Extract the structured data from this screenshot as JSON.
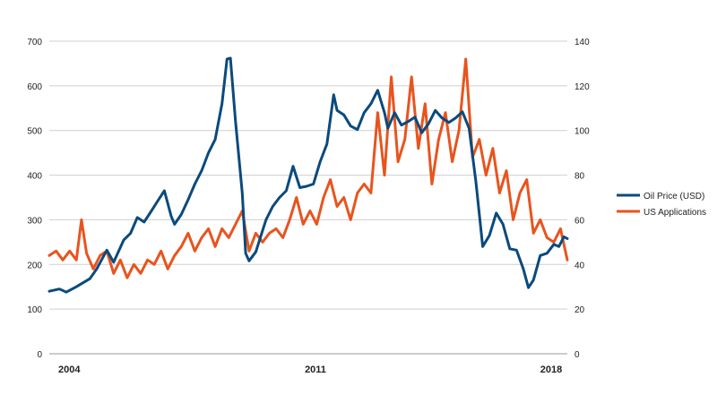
{
  "chart_data": {
    "type": "line",
    "title": "",
    "x_tick_labels": [
      "2004",
      "2011",
      "2018"
    ],
    "y_left_ticks": [
      "0",
      "100",
      "200",
      "300",
      "400",
      "500",
      "600",
      "700"
    ],
    "y_right_ticks": [
      "0",
      "20",
      "40",
      "60",
      "80",
      "100",
      "120",
      "140"
    ],
    "y_left_lim": [
      0,
      700
    ],
    "y_right_lim": [
      0,
      140
    ],
    "x_lim": [
      2003.6,
      2018.9
    ],
    "grid": "horizontal",
    "legend_position": "right",
    "series": [
      {
        "name": "Oil Price (USD)",
        "axis": "left",
        "color": "#0b4a7c",
        "points": [
          [
            2003.6,
            140
          ],
          [
            2003.9,
            145
          ],
          [
            2004.1,
            138
          ],
          [
            2004.4,
            150
          ],
          [
            2004.8,
            168
          ],
          [
            2005.0,
            190
          ],
          [
            2005.3,
            232
          ],
          [
            2005.5,
            205
          ],
          [
            2005.8,
            255
          ],
          [
            2006.0,
            270
          ],
          [
            2006.2,
            305
          ],
          [
            2006.4,
            295
          ],
          [
            2006.6,
            318
          ],
          [
            2006.8,
            342
          ],
          [
            2007.0,
            365
          ],
          [
            2007.2,
            308
          ],
          [
            2007.3,
            290
          ],
          [
            2007.5,
            312
          ],
          [
            2007.7,
            345
          ],
          [
            2007.9,
            380
          ],
          [
            2008.1,
            410
          ],
          [
            2008.3,
            450
          ],
          [
            2008.5,
            480
          ],
          [
            2008.7,
            560
          ],
          [
            2008.85,
            660
          ],
          [
            2008.95,
            662
          ],
          [
            2009.1,
            520
          ],
          [
            2009.3,
            360
          ],
          [
            2009.4,
            225
          ],
          [
            2009.5,
            208
          ],
          [
            2009.7,
            228
          ],
          [
            2010.0,
            300
          ],
          [
            2010.2,
            330
          ],
          [
            2010.4,
            350
          ],
          [
            2010.6,
            365
          ],
          [
            2010.8,
            420
          ],
          [
            2011.0,
            372
          ],
          [
            2011.2,
            375
          ],
          [
            2011.4,
            380
          ],
          [
            2011.6,
            430
          ],
          [
            2011.8,
            470
          ],
          [
            2012.0,
            580
          ],
          [
            2012.1,
            545
          ],
          [
            2012.3,
            535
          ],
          [
            2012.5,
            510
          ],
          [
            2012.7,
            502
          ],
          [
            2012.9,
            540
          ],
          [
            2013.1,
            560
          ],
          [
            2013.3,
            590
          ],
          [
            2013.5,
            540
          ],
          [
            2013.6,
            505
          ],
          [
            2013.8,
            540
          ],
          [
            2014.0,
            512
          ],
          [
            2014.2,
            520
          ],
          [
            2014.4,
            530
          ],
          [
            2014.6,
            495
          ],
          [
            2014.8,
            515
          ],
          [
            2015.0,
            545
          ],
          [
            2015.2,
            528
          ],
          [
            2015.4,
            518
          ],
          [
            2015.6,
            528
          ],
          [
            2015.8,
            542
          ],
          [
            2016.0,
            505
          ],
          [
            2016.2,
            385
          ],
          [
            2016.4,
            240
          ],
          [
            2016.6,
            265
          ],
          [
            2016.8,
            315
          ],
          [
            2017.0,
            290
          ],
          [
            2017.2,
            235
          ],
          [
            2017.4,
            232
          ],
          [
            2017.6,
            190
          ],
          [
            2017.75,
            148
          ],
          [
            2017.9,
            165
          ],
          [
            2018.1,
            220
          ],
          [
            2018.3,
            225
          ],
          [
            2018.5,
            245
          ],
          [
            2018.65,
            240
          ],
          [
            2018.8,
            262
          ],
          [
            2018.9,
            258
          ]
        ]
      },
      {
        "name": "US Applications",
        "axis": "right",
        "color": "#e8541e",
        "points": [
          [
            2003.6,
            44
          ],
          [
            2003.8,
            46
          ],
          [
            2004.0,
            42
          ],
          [
            2004.2,
            46
          ],
          [
            2004.4,
            42
          ],
          [
            2004.55,
            60
          ],
          [
            2004.7,
            45
          ],
          [
            2004.9,
            38
          ],
          [
            2005.1,
            44
          ],
          [
            2005.3,
            46
          ],
          [
            2005.5,
            36
          ],
          [
            2005.7,
            42
          ],
          [
            2005.9,
            34
          ],
          [
            2006.1,
            40
          ],
          [
            2006.3,
            36
          ],
          [
            2006.5,
            42
          ],
          [
            2006.7,
            40
          ],
          [
            2006.9,
            46
          ],
          [
            2007.1,
            38
          ],
          [
            2007.3,
            44
          ],
          [
            2007.5,
            48
          ],
          [
            2007.7,
            54
          ],
          [
            2007.9,
            46
          ],
          [
            2008.1,
            52
          ],
          [
            2008.3,
            56
          ],
          [
            2008.5,
            48
          ],
          [
            2008.7,
            56
          ],
          [
            2008.9,
            52
          ],
          [
            2009.1,
            58
          ],
          [
            2009.3,
            64
          ],
          [
            2009.5,
            46
          ],
          [
            2009.7,
            54
          ],
          [
            2009.9,
            50
          ],
          [
            2010.1,
            54
          ],
          [
            2010.3,
            56
          ],
          [
            2010.5,
            52
          ],
          [
            2010.7,
            60
          ],
          [
            2010.9,
            70
          ],
          [
            2011.1,
            58
          ],
          [
            2011.3,
            64
          ],
          [
            2011.5,
            58
          ],
          [
            2011.7,
            70
          ],
          [
            2011.9,
            78
          ],
          [
            2012.1,
            66
          ],
          [
            2012.3,
            70
          ],
          [
            2012.5,
            60
          ],
          [
            2012.7,
            72
          ],
          [
            2012.9,
            76
          ],
          [
            2013.1,
            72
          ],
          [
            2013.3,
            108
          ],
          [
            2013.5,
            80
          ],
          [
            2013.7,
            124
          ],
          [
            2013.9,
            86
          ],
          [
            2014.1,
            96
          ],
          [
            2014.3,
            124
          ],
          [
            2014.5,
            92
          ],
          [
            2014.7,
            112
          ],
          [
            2014.9,
            76
          ],
          [
            2015.1,
            96
          ],
          [
            2015.3,
            108
          ],
          [
            2015.5,
            86
          ],
          [
            2015.7,
            100
          ],
          [
            2015.9,
            132
          ],
          [
            2016.1,
            88
          ],
          [
            2016.3,
            96
          ],
          [
            2016.5,
            80
          ],
          [
            2016.7,
            92
          ],
          [
            2016.9,
            72
          ],
          [
            2017.1,
            82
          ],
          [
            2017.3,
            60
          ],
          [
            2017.5,
            72
          ],
          [
            2017.7,
            78
          ],
          [
            2017.9,
            54
          ],
          [
            2018.1,
            60
          ],
          [
            2018.3,
            52
          ],
          [
            2018.5,
            50
          ],
          [
            2018.7,
            56
          ],
          [
            2018.9,
            42
          ]
        ]
      }
    ]
  }
}
